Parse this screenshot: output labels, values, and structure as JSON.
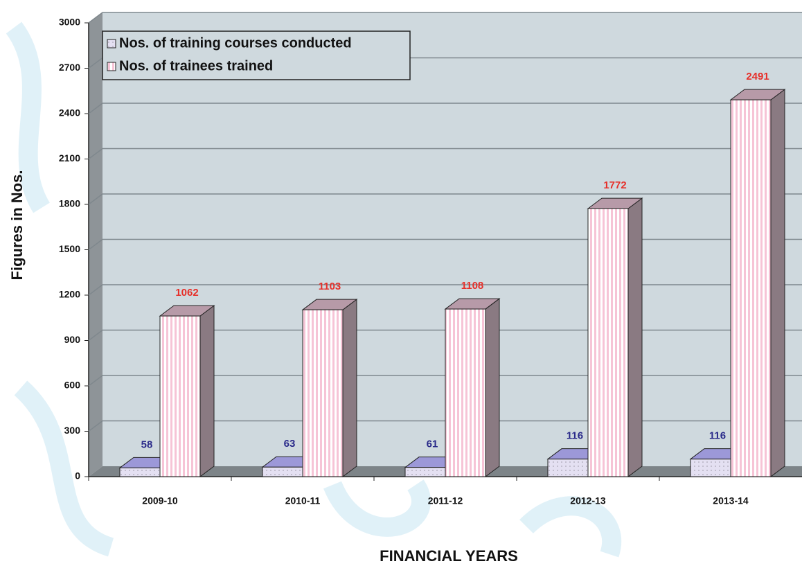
{
  "chart_data": {
    "type": "bar",
    "ylabel": "Figures in Nos.",
    "xlabel": "FINANCIAL YEARS",
    "categories": [
      "2009-10",
      "2010-11",
      "2011-12",
      "2012-13",
      "2013-14"
    ],
    "series": [
      {
        "name": "Nos. of training courses conducted",
        "color": "#e4e0f2",
        "label_color": "#2a2a8a",
        "values": [
          58,
          63,
          61,
          116,
          116
        ]
      },
      {
        "name": "Nos. of trainees trained",
        "color": "#f6c4d6",
        "label_color": "#e6302a",
        "values": [
          1062,
          1103,
          1108,
          1772,
          2491
        ]
      }
    ],
    "ylim": [
      0,
      3000
    ],
    "yticks": [
      0,
      300,
      600,
      900,
      1200,
      1500,
      1800,
      2100,
      2400,
      2700,
      3000
    ],
    "grid": true,
    "legend": "top-left"
  }
}
